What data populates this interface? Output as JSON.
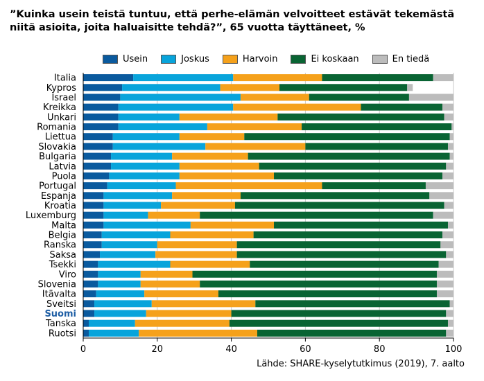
{
  "title": {
    "line1": "”Kuinka usein teistä tuntuu, että perhe-elämän velvoitteet estävät tekemästä",
    "line2": "niitä asioita, joita haluaisitte tehdä?”, 65 vuotta täyttäneet, %"
  },
  "source": "Lähde: SHARE-kyselytutkimus (2019), 7. aalto",
  "colors": {
    "usein": "#0a5a9e",
    "joskus": "#08a4db",
    "harvoin": "#f5a11b",
    "ei_koskaan": "#096433",
    "en_tieda": "#bcbcbc",
    "highlight_label": "#1f5fa5",
    "grid": "#c8c8c8"
  },
  "legend": [
    "Usein",
    "Joskus",
    "Harvoin",
    "Ei koskaan",
    "En tiedä"
  ],
  "chart_data": {
    "type": "bar",
    "orientation": "horizontal",
    "stacked": true,
    "xlim": [
      0,
      100
    ],
    "xticks": [
      0,
      20,
      40,
      60,
      80,
      100
    ],
    "grid": true,
    "legend_position": "top",
    "highlight_category": "Suomi",
    "categories": [
      "Italia",
      "Kypros",
      "Israel",
      "Kreikka",
      "Unkari",
      "Romania",
      "Liettua",
      "Slovakia",
      "Bulgaria",
      "Latvia",
      "Puola",
      "Portugal",
      "Espanja",
      "Kroatia",
      "Luxemburg",
      "Malta",
      "Belgia",
      "Ranska",
      "Saksa",
      "Tsekki",
      "Viro",
      "Slovenia",
      "Itävalta",
      "Sveitsi",
      "Suomi",
      "Tanska",
      "Ruotsi"
    ],
    "series": [
      {
        "name": "Usein",
        "values": [
          13.5,
          10.5,
          10,
          9.5,
          9.5,
          9.5,
          8,
          8,
          7.5,
          7.5,
          7,
          6.5,
          5.5,
          5.5,
          5.5,
          5.5,
          5,
          5,
          4.5,
          4,
          4,
          4,
          3.5,
          3,
          3,
          1.5,
          1.5
        ]
      },
      {
        "name": "Joskus",
        "values": [
          27,
          26.5,
          32.5,
          31,
          16.5,
          24,
          18,
          25,
          16.5,
          18.5,
          19,
          18.5,
          18.5,
          15.5,
          12,
          23.5,
          18.5,
          15,
          15,
          19.5,
          11.5,
          11.5,
          13,
          15.5,
          14,
          12.5,
          13.5
        ]
      },
      {
        "name": "Harvoin",
        "values": [
          24,
          16,
          18.5,
          34.5,
          26.5,
          25.5,
          17.5,
          27,
          20.5,
          21.5,
          25.5,
          39.5,
          18.5,
          20,
          14,
          22.5,
          22.5,
          21.5,
          22,
          21.5,
          14,
          16,
          20,
          28,
          23,
          25.5,
          32
        ]
      },
      {
        "name": "Ei koskaan",
        "values": [
          30,
          34.5,
          27,
          22,
          45,
          40.5,
          55.5,
          38.5,
          54.5,
          50.5,
          45.5,
          28,
          51,
          56.5,
          63,
          47,
          51,
          55,
          56.5,
          51,
          66,
          64,
          59,
          52.5,
          58,
          59,
          51
        ]
      },
      {
        "name": "En tiedä",
        "values": [
          5.5,
          1.5,
          12,
          3,
          2.5,
          0.5,
          1,
          1.5,
          1,
          2,
          3,
          7.5,
          6.5,
          2.5,
          5.5,
          1.5,
          3,
          3.5,
          2,
          4,
          4.5,
          4.5,
          4.5,
          1,
          2,
          1.5,
          2
        ]
      }
    ]
  }
}
